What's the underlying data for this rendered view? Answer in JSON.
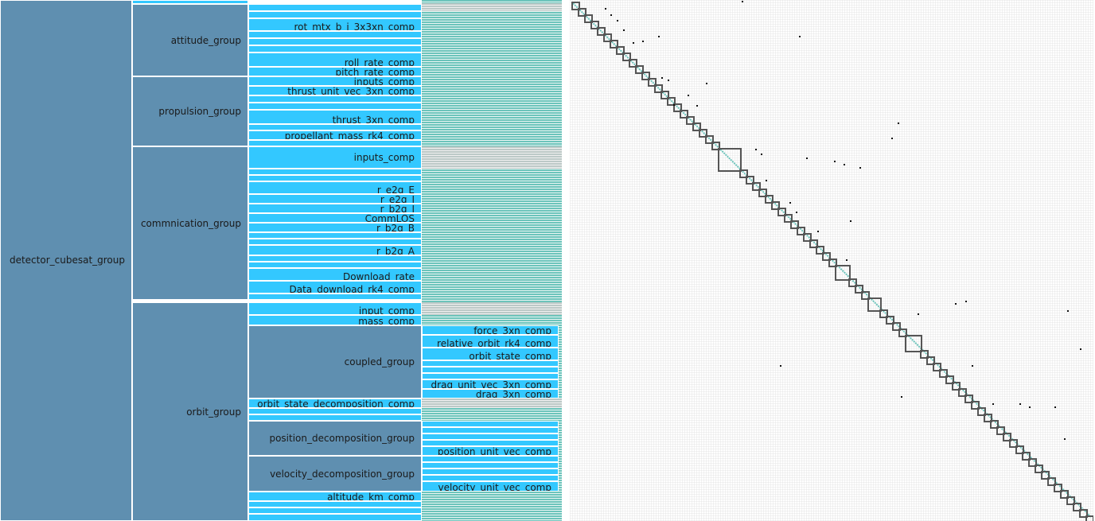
{
  "root": {
    "label": "detector_cubesat_group"
  },
  "groups": {
    "attitude": {
      "label": "attitude_group"
    },
    "propulsion": {
      "label": "propulsion_group"
    },
    "commnication": {
      "label": "commnication_group"
    },
    "orbit": {
      "label": "orbit_group"
    },
    "coupled": {
      "label": "coupled_group"
    },
    "position_decomposition": {
      "label": "position_decomposition_group"
    },
    "velocity_decomposition": {
      "label": "velocity_decomposition_group"
    }
  },
  "components": {
    "rot_mtx": "rot_mtx_b_i_3x3xn_comp",
    "roll_rate": "roll_rate_comp",
    "pitch_rate": "pitch_rate_comp",
    "prop_inputs": "inputs_comp",
    "thrust_unit_vec": "thrust_unit_vec_3xn_comp",
    "thrust": "thrust_3xn_comp",
    "propellant_mass": "propellant_mass_rk4_comp",
    "comm_inputs": "inputs_comp",
    "r_e2g_E": "r_e2g_E",
    "r_e2g_I": "r_e2g_I",
    "r_b2g_I": "r_b2g_I",
    "CommLOS": "CommLOS",
    "r_b2g_B": "r_b2g_B",
    "r_b2g_A": "r_b2g_A",
    "Download_rate": "Download_rate",
    "Data_download": "Data_download_rk4_comp",
    "input_comp": "input_comp",
    "mass_comp": "mass_comp",
    "force": "force_3xn_comp",
    "relative_orbit": "relative_orbit_rk4_comp",
    "orbit_state": "orbit_state_comp",
    "drag_unit_vec": "drag_unit_vec_3xn_comp",
    "drag": "drag_3xn_comp",
    "orbit_state_decomposition": "orbit_state_decomposition_comp",
    "position_unit_vec": "position_unit_vec_comp",
    "velocity_unit_vec": "velocity_unit_vec_comp",
    "altitude_km": "altitude_km_comp"
  },
  "colors": {
    "group": "#5f8fb0",
    "component": "#33c8ff",
    "variable_strip": "#6cc4bb",
    "input_strip": "#bcc9c7",
    "matrix_grid": "#e4e4e4",
    "diagonal": "#6cc4bb",
    "block_border": "#555555",
    "connection_dot": "#111111"
  }
}
